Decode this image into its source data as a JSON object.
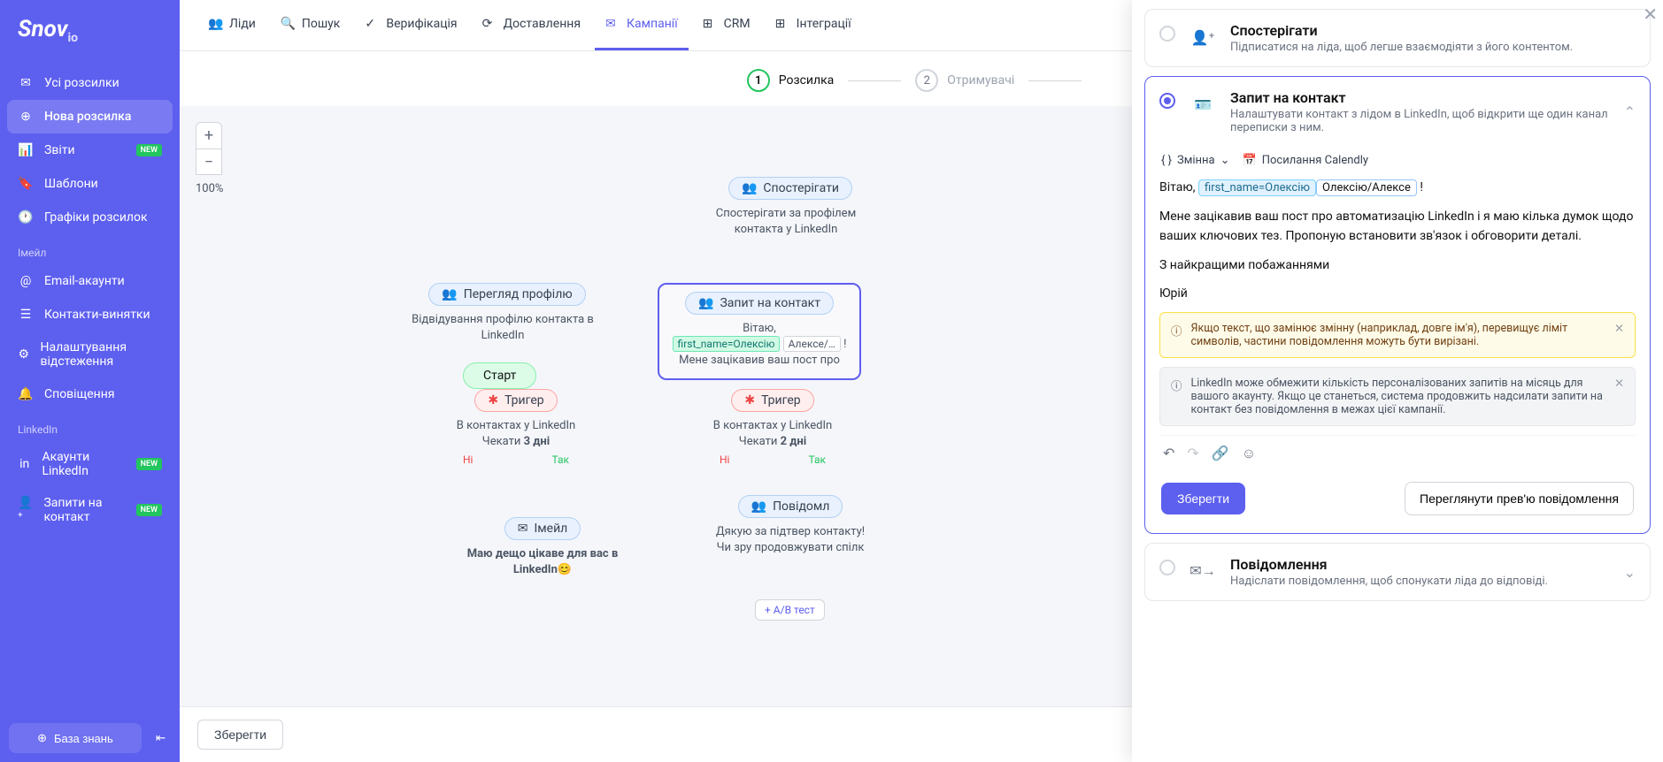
{
  "brand": "Snov",
  "brand_suffix": "io",
  "sidebar": {
    "items": [
      {
        "label": "Усі розсилки",
        "icon": "mail"
      },
      {
        "label": "Нова розсилка",
        "icon": "plus-circle",
        "active": true
      },
      {
        "label": "Звіти",
        "icon": "chart",
        "badge": "NEW"
      },
      {
        "label": "Шаблони",
        "icon": "bookmark"
      },
      {
        "label": "Графіки розсилок",
        "icon": "clock"
      }
    ],
    "section_email": "Імейл",
    "email_items": [
      {
        "label": "Email-акаунти",
        "icon": "at"
      },
      {
        "label": "Контакти-винятки",
        "icon": "list"
      },
      {
        "label": "Налаштування відстеження",
        "icon": "gear"
      },
      {
        "label": "Сповіщення",
        "icon": "bell"
      }
    ],
    "section_linkedin": "LinkedIn",
    "linkedin_items": [
      {
        "label": "Акаунти LinkedIn",
        "icon": "linkedin",
        "badge": "NEW"
      },
      {
        "label": "Запити на контакт",
        "icon": "userplus",
        "badge": "NEW"
      }
    ],
    "kb_label": "База знань"
  },
  "topnav": [
    {
      "label": "Ліди"
    },
    {
      "label": "Пошук"
    },
    {
      "label": "Верифікація"
    },
    {
      "label": "Доставлення"
    },
    {
      "label": "Кампанії",
      "active": true
    },
    {
      "label": "CRM"
    },
    {
      "label": "Інтеграції"
    }
  ],
  "steps": [
    {
      "num": "1",
      "label": "Розсилка",
      "current": true
    },
    {
      "num": "2",
      "label": "Отримувачі"
    }
  ],
  "zoom": "100%",
  "canvas": {
    "start": "Старт",
    "observe": {
      "title": "Спостерігати",
      "body": "Спостерігати за профілем контакта у LinkedIn"
    },
    "profile": {
      "title": "Перегляд профілю",
      "body": "Відвідування профілю контакта в LinkedIn"
    },
    "contact": {
      "title": "Запит на контакт",
      "greet": "Вітаю,",
      "var": "first_name=Олексію",
      "val": "Алексе/…",
      "body": "Мене зацікавив ваш пост про"
    },
    "trigger1": {
      "title": "Тригер",
      "body": "В контактах у LinkedIn",
      "wait": "Чекати ",
      "days": "3 дні",
      "no": "Ні",
      "yes": "Так"
    },
    "trigger2": {
      "title": "Тригер",
      "body": "В контактах у LinkedIn",
      "wait": "Чекати ",
      "days": "2 дні",
      "no": "Ні",
      "yes": "Так"
    },
    "email": {
      "title": "Імейл",
      "body": "Маю дещо цікаве для вас в LinkedIn😊"
    },
    "message": {
      "title": "Повідомл",
      "body": "Дякую за підтвер контакту! Чи зру продовжувати спілк"
    },
    "ab": "+ A/B тест"
  },
  "bottom_save": "Зберегти",
  "panel": {
    "card_observe": {
      "title": "Спостерігати",
      "sub": "Підписатися на ліда, щоб легше взаємодіяти з його контентом."
    },
    "card_contact": {
      "title": "Запит на контакт",
      "sub": "Налаштувати контакт з лідом в LinkedIn, щоб відкрити ще один канал переписки з ним."
    },
    "tb_var": "Змінна",
    "tb_calendly": "Посилання Calendly",
    "editor": {
      "greet": "Вітаю, ",
      "var": "first_name=Олексію",
      "val": "Олексію/Алексе",
      "excl": " !",
      "p1": "Мене зацікавив ваш пост про автоматизацію LinkedIn і я маю кілька думок щодо ваших ключових тез. Пропоную встановити зв'язок і обговорити деталі.",
      "p2": "З найкращими побажаннями",
      "p3": "Юрій"
    },
    "alert1": "Якщо текст, що замінює змінну (наприклад, довге ім'я), перевищує ліміт символів, частини повідомлення можуть бути вирізані.",
    "alert2": "LinkedIn може обмежити кількість персоналізованих запитів на місяць для вашого акаунту. Якщо це станеться, система продовжить надсилати запити на контакт без повідомлення в межах цієї кампанії.",
    "save": "Зберегти",
    "preview": "Переглянути прев'ю повідомлення",
    "card_message": {
      "title": "Повідомлення",
      "sub": "Надіслати повідомлення, щоб спонукати ліда до відповіді."
    }
  }
}
